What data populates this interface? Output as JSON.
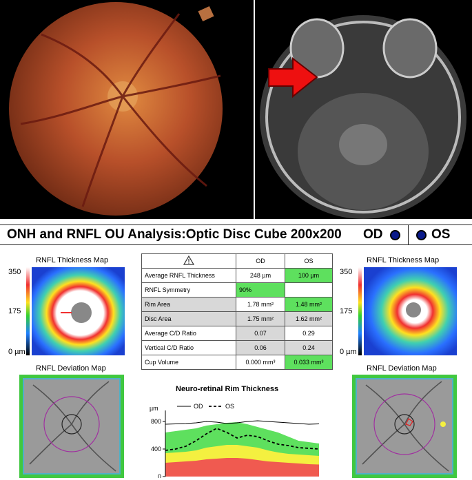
{
  "header": {
    "title": "ONH and RNFL OU Analysis:Optic Disc Cube 200x200",
    "od_label": "OD",
    "os_label": "OS"
  },
  "left_maps": {
    "thickness_title": "RNFL Thickness Map",
    "deviation_title": "RNFL Deviation Map",
    "scale_max": "350",
    "scale_mid": "175",
    "scale_min": "0 µm"
  },
  "right_maps": {
    "thickness_title": "RNFL Thickness Map",
    "deviation_title": "RNFL Deviation Map",
    "scale_max": "350",
    "scale_mid": "175",
    "scale_min": "0 µm"
  },
  "table": {
    "header": {
      "od": "OD",
      "os": "OS"
    },
    "rows": [
      {
        "label": "Average RNFL Thickness",
        "od": "248 µm",
        "os": "100 µm"
      },
      {
        "label": "RNFL Symmetry",
        "value": "90%"
      },
      {
        "label": "Rim Area",
        "od": "1.78 mm²",
        "os": "1.48 mm²"
      },
      {
        "label": "Disc Area",
        "od": "1.75 mm²",
        "os": "1.62 mm²"
      },
      {
        "label": "Average C/D Ratio",
        "od": "0.07",
        "os": "0.29"
      },
      {
        "label": "Vertical C/D Ratio",
        "od": "0.06",
        "os": "0.24"
      },
      {
        "label": "Cup Volume",
        "od": "0.000 mm³",
        "os": "0.033 mm³"
      }
    ]
  },
  "colors": {
    "normal_green": "#5ee05e",
    "borderline_yellow": "#f4f040",
    "abnormal_red": "#f05a50"
  },
  "chart_data": {
    "type": "line",
    "title": "Neuro-retinal Rim Thickness",
    "ylabel": "µm",
    "yticks": [
      "800",
      "400",
      "0"
    ],
    "ylim": [
      0,
      900
    ],
    "legend": "top",
    "series": [
      {
        "name": "OD",
        "style": "solid",
        "values": [
          760,
          765,
          770,
          780,
          800,
          790,
          770,
          780,
          800,
          810,
          800,
          790,
          780,
          770,
          760,
          765
        ]
      },
      {
        "name": "OS",
        "style": "dashed",
        "values": [
          380,
          400,
          440,
          520,
          620,
          700,
          640,
          560,
          600,
          580,
          520,
          470,
          450,
          420,
          410,
          400
        ]
      }
    ],
    "normative_bands": {
      "green_top": [
        640,
        660,
        680,
        700,
        740,
        760,
        780,
        790,
        760,
        720,
        680,
        640,
        580,
        520,
        500,
        480
      ],
      "yellow_top": [
        340,
        350,
        360,
        380,
        420,
        440,
        460,
        460,
        440,
        420,
        380,
        350,
        330,
        320,
        310,
        300
      ],
      "red_top": [
        200,
        210,
        220,
        230,
        250,
        260,
        270,
        270,
        260,
        240,
        220,
        210,
        200,
        190,
        180,
        175
      ]
    }
  }
}
